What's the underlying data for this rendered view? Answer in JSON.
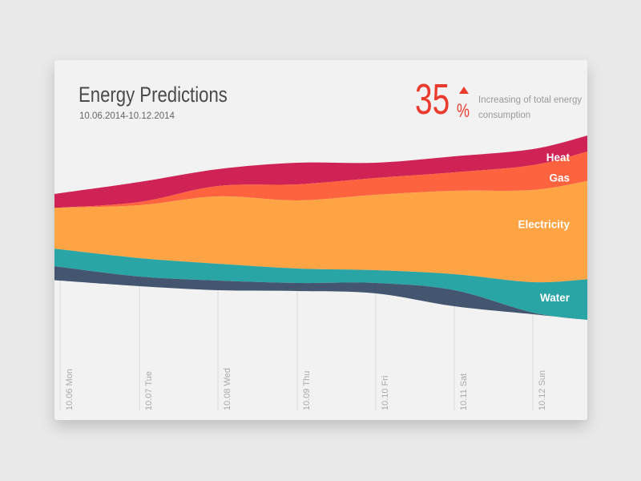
{
  "header": {
    "title": "Energy Predictions",
    "date_range": "10.06.2014-10.12.2014"
  },
  "kpi": {
    "value": "35",
    "unit": "%",
    "trend": "up",
    "description": "Increasing of total energy consumption",
    "color": "#ea3b2e"
  },
  "chart_data": {
    "type": "area",
    "subtype": "streamgraph",
    "categories": [
      "10.06 Mon",
      "10.07 Tue",
      "10.08 Wed",
      "10.09 Thu",
      "10.10 Fri",
      "10.11 Sat",
      "10.12 Sun"
    ],
    "grid": "vertical",
    "series": [
      {
        "name": "Heat",
        "color": "#cf2255",
        "values": [
          18,
          25,
          21,
          27,
          19,
          20,
          20
        ]
      },
      {
        "name": "Gas",
        "color": "#fe6340",
        "values": [
          0,
          4,
          13,
          20,
          21,
          23,
          31
        ]
      },
      {
        "name": "Electricity",
        "color": "#ffa444",
        "values": [
          52,
          66,
          84,
          85,
          94,
          104,
          115
        ]
      },
      {
        "name": "Water",
        "color": "#2aa5a6",
        "values": [
          22,
          23,
          21,
          18,
          16,
          20,
          38
        ]
      },
      {
        "color": "#44566f",
        "values": [
          17,
          12,
          12,
          10,
          13,
          20,
          2
        ]
      }
    ]
  }
}
